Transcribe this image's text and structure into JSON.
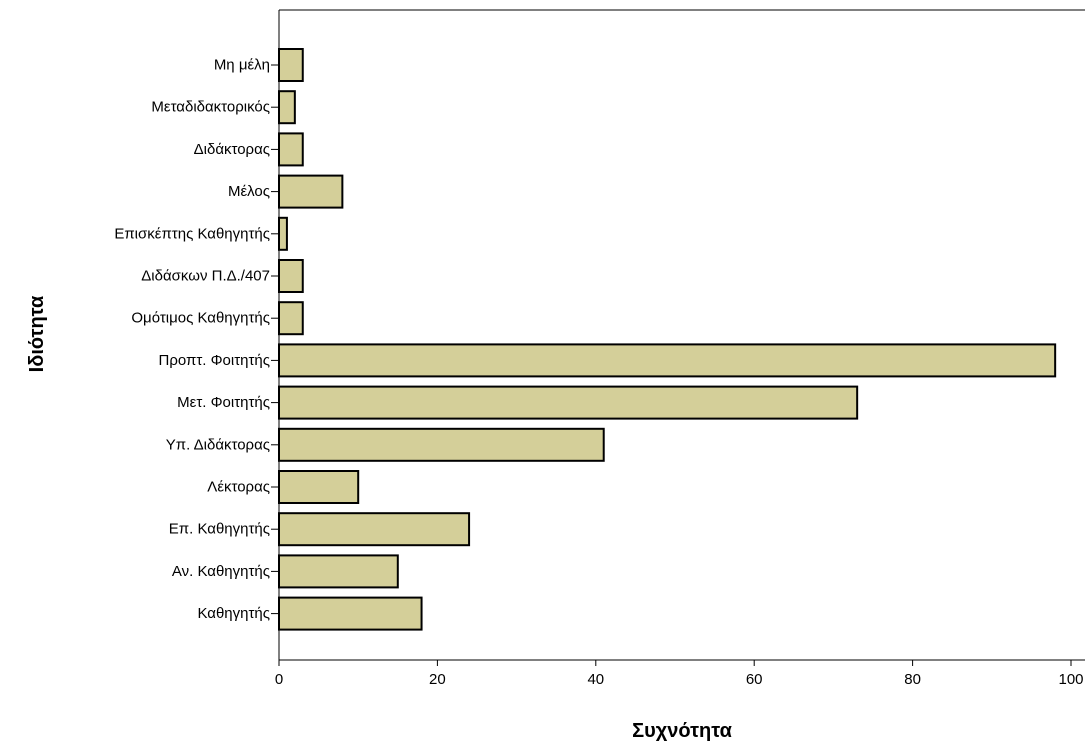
{
  "chart_data": {
    "type": "bar",
    "orientation": "horizontal",
    "categories": [
      "Μη μέλη",
      "Μεταδιδακτορικός",
      "Διδάκτορας",
      "Μέλος",
      "Επισκέπτης Καθηγητής",
      "Διδάσκων Π.Δ./407",
      "Ομότιμος Καθηγητής",
      "Προπτ. Φοιτητής",
      "Μετ. Φοιτητής",
      "Υπ. Διδάκτορας",
      "Λέκτορας",
      "Επ. Καθηγητής",
      "Αν. Καθηγητής",
      "Καθηγητής"
    ],
    "values": [
      3,
      2,
      3,
      8,
      1,
      3,
      3,
      98,
      73,
      41,
      10,
      24,
      15,
      18
    ],
    "xlabel": "Συχνότητα",
    "ylabel": "Ιδιότητα",
    "xlim": [
      0,
      102
    ],
    "xticks": [
      0,
      20,
      40,
      60,
      80,
      100
    ],
    "grid": false,
    "colors": {
      "bar_fill": "#d4cf99",
      "bar_stroke": "#000000",
      "axis": "#000000"
    }
  }
}
